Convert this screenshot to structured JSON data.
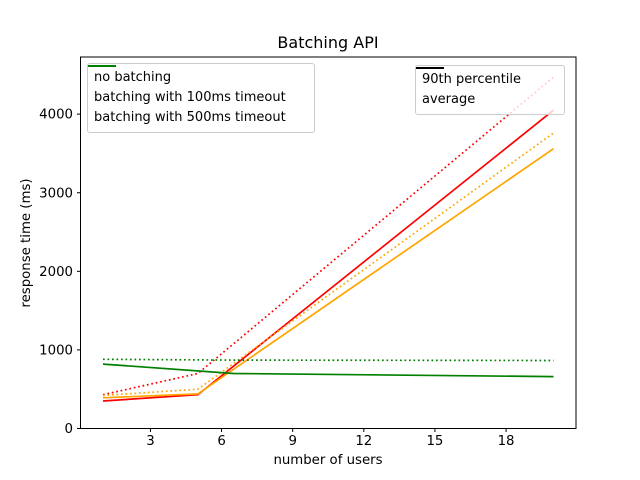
{
  "chart_data": {
    "type": "line",
    "title": "Batching API",
    "xlabel": "number of users",
    "ylabel": "response time (ms)",
    "xlim": [
      0.05,
      20.95
    ],
    "ylim": [
      0,
      4727
    ],
    "xticks": [
      3,
      6,
      9,
      12,
      15,
      18
    ],
    "yticks": [
      0,
      1000,
      2000,
      3000,
      4000
    ],
    "grid": false,
    "series": [
      {
        "name": "no-batching-average",
        "color": "#ff0000",
        "style": "solid",
        "points": [
          [
            1,
            350
          ],
          [
            5,
            430
          ],
          [
            20,
            4050
          ]
        ]
      },
      {
        "name": "no-batching-90th-percentile",
        "color": "#ff0000",
        "style": "dotted",
        "points": [
          [
            1,
            430
          ],
          [
            5,
            700
          ],
          [
            20,
            4470
          ]
        ]
      },
      {
        "name": "batching-100ms-average",
        "color": "#ffa500",
        "style": "solid",
        "points": [
          [
            1,
            390
          ],
          [
            5,
            440
          ],
          [
            20,
            3560
          ]
        ]
      },
      {
        "name": "batching-100ms-90th-percentile",
        "color": "#ffa500",
        "style": "dotted",
        "points": [
          [
            1,
            420
          ],
          [
            5,
            500
          ],
          [
            20,
            3760
          ]
        ]
      },
      {
        "name": "batching-500ms-average",
        "color": "#008000",
        "style": "solid",
        "points": [
          [
            1,
            820
          ],
          [
            6.5,
            700
          ],
          [
            20,
            660
          ]
        ]
      },
      {
        "name": "batching-500ms-90th-percentile",
        "color": "#008000",
        "style": "dotted",
        "points": [
          [
            1,
            880
          ],
          [
            6.5,
            870
          ],
          [
            20,
            865
          ]
        ]
      }
    ],
    "legends": {
      "series": {
        "position": "upper left",
        "items": [
          {
            "label": "no batching",
            "color": "#ff0000",
            "style": "solid"
          },
          {
            "label": "batching with 100ms timeout",
            "color": "#ffa500",
            "style": "solid"
          },
          {
            "label": "batching with 500ms timeout",
            "color": "#008000",
            "style": "solid"
          }
        ]
      },
      "style": {
        "position": "upper right",
        "items": [
          {
            "label": "90th percentile",
            "color": "#000000",
            "style": "dotted"
          },
          {
            "label": "average",
            "color": "#000000",
            "style": "solid"
          }
        ]
      }
    }
  }
}
